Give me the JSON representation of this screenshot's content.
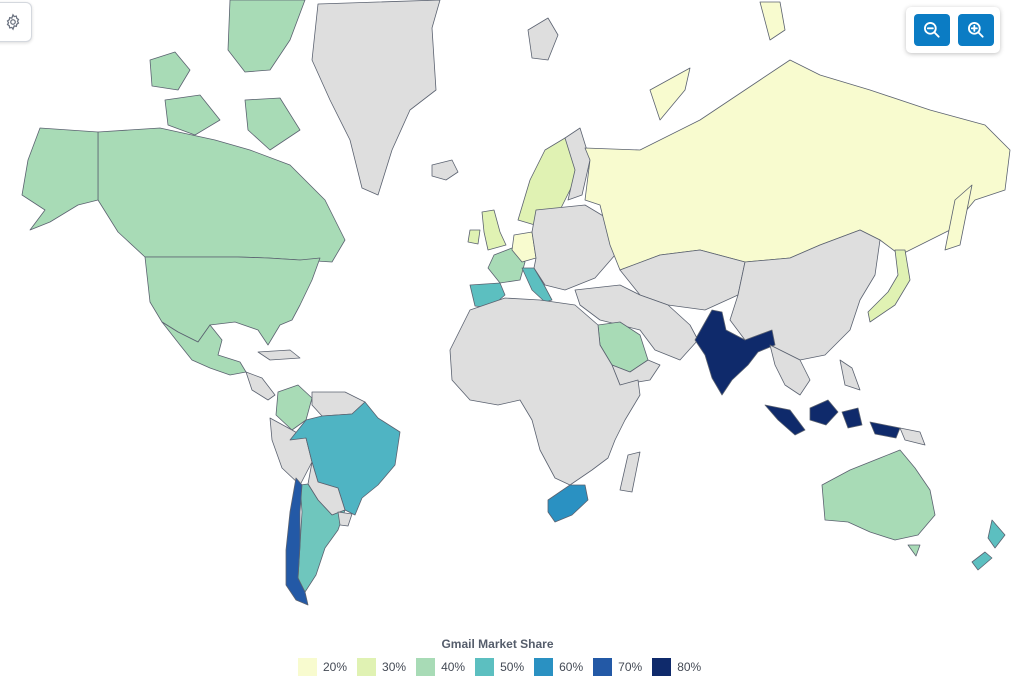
{
  "legend": {
    "title": "Gmail Market Share",
    "items": [
      {
        "label": "20%",
        "color": "#f8fbcf"
      },
      {
        "label": "30%",
        "color": "#e0f2b3"
      },
      {
        "label": "40%",
        "color": "#a8dbb6"
      },
      {
        "label": "50%",
        "color": "#5cbfc0"
      },
      {
        "label": "60%",
        "color": "#2a91c2"
      },
      {
        "label": "70%",
        "color": "#2359a6"
      },
      {
        "label": "80%",
        "color": "#0f2a6b"
      }
    ],
    "no_data_color": "#dedede"
  },
  "controls": {
    "settings_icon": "gear-icon",
    "zoom_out_icon": "zoom-out-icon",
    "zoom_in_icon": "zoom-in-icon"
  },
  "regions": [
    {
      "region": "Canada",
      "share": "40%"
    },
    {
      "region": "Alaska",
      "share": "40%"
    },
    {
      "region": "United States",
      "share": "40%"
    },
    {
      "region": "Mexico",
      "share": "40%"
    },
    {
      "region": "Colombia",
      "share": "40%"
    },
    {
      "region": "Brazil",
      "share": "50%"
    },
    {
      "region": "Argentina",
      "share": "50%"
    },
    {
      "region": "Chile",
      "share": "70%"
    },
    {
      "region": "Russia",
      "share": "20%"
    },
    {
      "region": "Scandinavia",
      "share": "30%"
    },
    {
      "region": "United Kingdom",
      "share": "30%"
    },
    {
      "region": "France",
      "share": "40%"
    },
    {
      "region": "Germany",
      "share": "20%"
    },
    {
      "region": "Spain",
      "share": "50%"
    },
    {
      "region": "Italy",
      "share": "50%"
    },
    {
      "region": "Saudi Arabia",
      "share": "40%"
    },
    {
      "region": "India",
      "share": "80%"
    },
    {
      "region": "Indonesia",
      "share": "80%"
    },
    {
      "region": "South Africa",
      "share": "60%"
    },
    {
      "region": "Japan",
      "share": "30%"
    },
    {
      "region": "Australia",
      "share": "40%"
    },
    {
      "region": "New Zealand",
      "share": "50%"
    }
  ]
}
